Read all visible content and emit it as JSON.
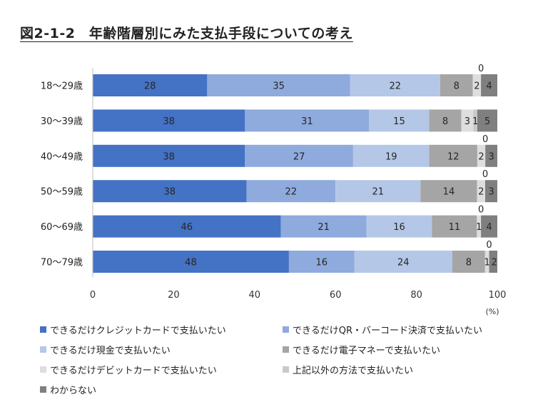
{
  "title": "図2-1-2　年齢階層別にみた支払手段についての考え",
  "chart_data": {
    "type": "bar",
    "orientation": "horizontal",
    "stacked": true,
    "categories": [
      "18～29歳",
      "30～39歳",
      "40～49歳",
      "50～59歳",
      "60～69歳",
      "70～79歳"
    ],
    "series": [
      {
        "name": "できるだけクレジットカードで支払いたい",
        "color": "#4472c4",
        "values": [
          28,
          38,
          38,
          38,
          46,
          48
        ],
        "labels": [
          "28",
          "38",
          "38",
          "38",
          "46",
          "48"
        ]
      },
      {
        "name": "できるだけQR・バーコード決済で支払いたい",
        "color": "#8faadc",
        "values": [
          35,
          31,
          27,
          22,
          21,
          16
        ],
        "labels": [
          "35",
          "31",
          "27",
          "22",
          "21",
          "16"
        ]
      },
      {
        "name": "できるだけ現金で支払いたい",
        "color": "#b4c7e7",
        "values": [
          22,
          15,
          19,
          21,
          16,
          24
        ],
        "labels": [
          "22",
          "15",
          "19",
          "21",
          "16",
          "24"
        ]
      },
      {
        "name": "できるだけ電子マネーで支払いたい",
        "color": "#a5a5a5",
        "values": [
          8,
          8,
          12,
          14,
          11,
          8
        ],
        "labels": [
          "8",
          "8",
          "12",
          "14",
          "11",
          "8"
        ]
      },
      {
        "name": "できるだけデビットカードで支払いたい",
        "color": "#dedede",
        "values": [
          2,
          3,
          2,
          2,
          1,
          1
        ],
        "labels": [
          "2",
          "3",
          "2",
          "2",
          "1",
          "1"
        ]
      },
      {
        "name": "上記以外の方法で支払いたい",
        "color": "#c9c9c9",
        "values": [
          0,
          1,
          0,
          0,
          0,
          0
        ],
        "labels": [
          "0",
          "1",
          "0",
          "0",
          "0",
          "0"
        ]
      },
      {
        "name": "わからない",
        "color": "#7f7f7f",
        "values": [
          4,
          5,
          3,
          3,
          4,
          2
        ],
        "labels": [
          "4",
          "5",
          "3",
          "3",
          "4",
          "2"
        ]
      }
    ],
    "xlim": [
      0,
      100
    ],
    "xticks": [
      "0",
      "20",
      "40",
      "60",
      "80",
      "100"
    ],
    "xunit": "(%)",
    "legend_position": "bottom",
    "grid": false
  }
}
